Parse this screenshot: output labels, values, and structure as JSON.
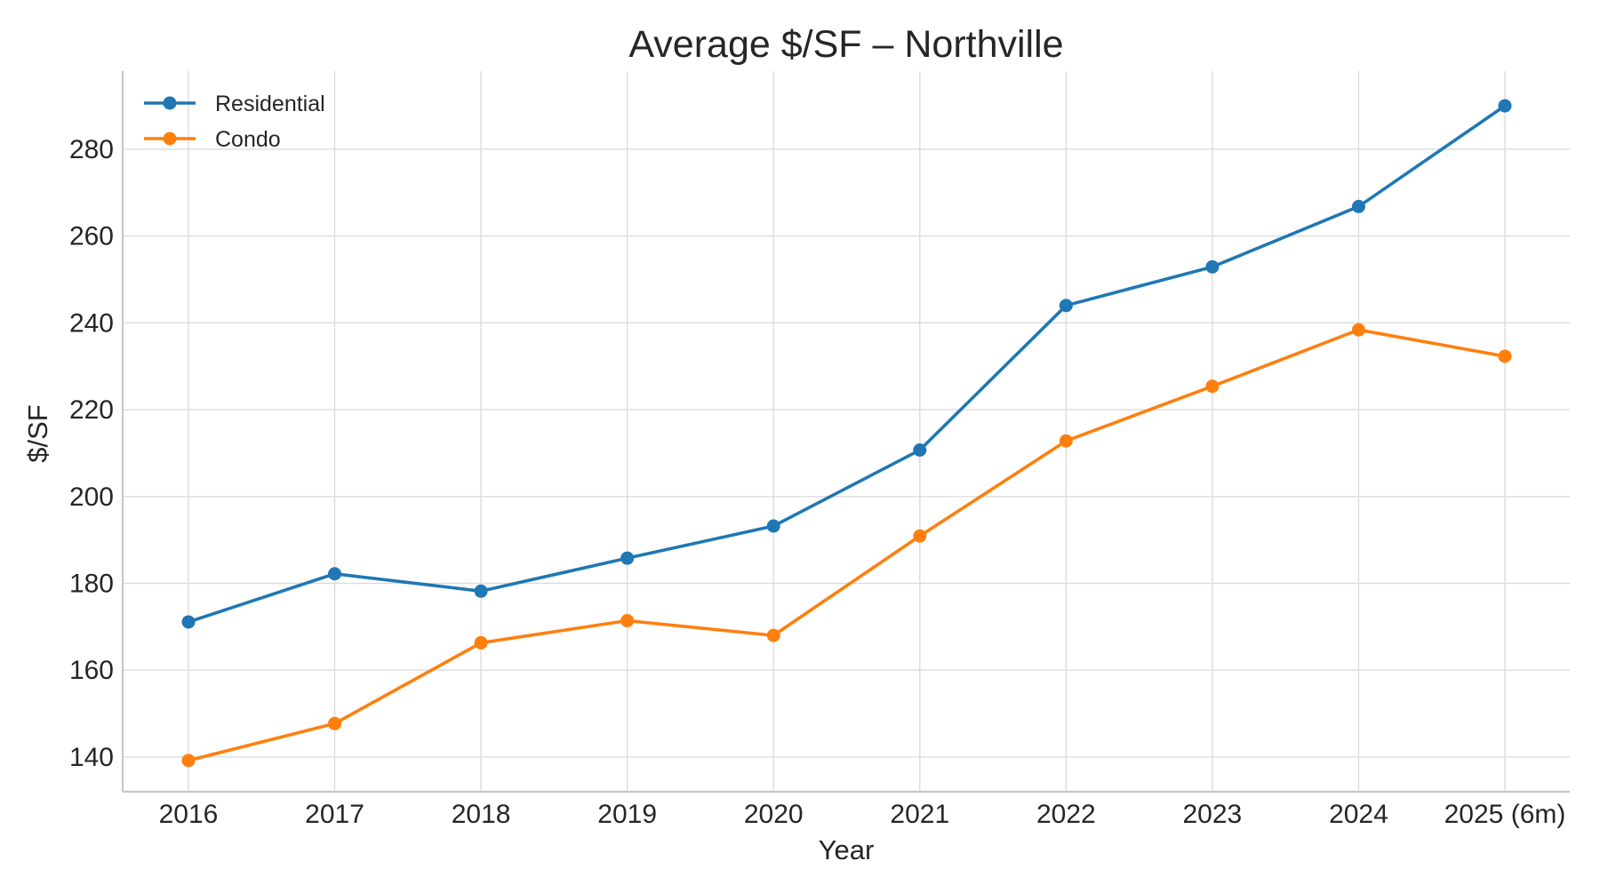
{
  "chart_data": {
    "type": "line",
    "title": "Average $/SF – Northville",
    "xlabel": "Year",
    "ylabel": "$/SF",
    "categories": [
      "2016",
      "2017",
      "2018",
      "2019",
      "2020",
      "2021",
      "2022",
      "2023",
      "2024",
      "2025 (6m)"
    ],
    "ylim": [
      132,
      298
    ],
    "yticks": [
      140,
      160,
      180,
      200,
      220,
      240,
      260,
      280
    ],
    "grid": true,
    "legend_position": "top-left",
    "series": [
      {
        "name": "Residential",
        "color": "#1f77b4",
        "marker": "circle",
        "values": [
          171.1,
          182.2,
          178.2,
          185.8,
          193.2,
          210.7,
          244.0,
          252.9,
          266.8,
          290.0
        ]
      },
      {
        "name": "Condo",
        "color": "#ff7f0e",
        "marker": "circle",
        "values": [
          139.2,
          147.7,
          166.3,
          171.4,
          168.0,
          190.9,
          212.8,
          225.4,
          238.4,
          232.3
        ]
      }
    ]
  }
}
